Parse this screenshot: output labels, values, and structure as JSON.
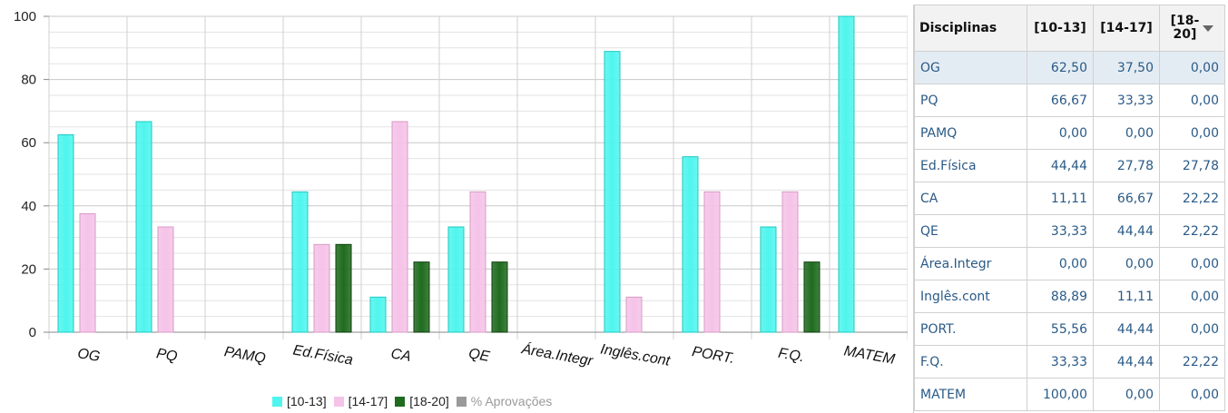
{
  "chart_data": {
    "type": "bar",
    "categories": [
      "OG",
      "PQ",
      "PAMQ",
      "Ed.Física",
      "CA",
      "QE",
      "Área.Integr",
      "Inglês.cont",
      "PORT.",
      "F.Q.",
      "MATEM"
    ],
    "series": [
      {
        "name": "[10-13]",
        "color": "#4ff5ee",
        "values": [
          62.5,
          66.67,
          0,
          44.44,
          11.11,
          33.33,
          0,
          88.89,
          55.56,
          33.33,
          100
        ]
      },
      {
        "name": "[14-17]",
        "color": "#f5c3e8",
        "values": [
          37.5,
          33.33,
          0,
          27.78,
          66.67,
          44.44,
          0,
          11.11,
          44.44,
          44.44,
          0
        ]
      },
      {
        "name": "[18-20]",
        "color": "#1f6b1f",
        "values": [
          0,
          0,
          0,
          27.78,
          22.22,
          22.22,
          0,
          0,
          0,
          22.22,
          0
        ]
      }
    ],
    "yticks": [
      "0",
      "20",
      "40",
      "60",
      "80",
      "100"
    ],
    "ylim": [
      0,
      100
    ],
    "grid": true,
    "legend_position": "bottom",
    "legend": [
      {
        "label": "[10-13]",
        "color": "#4ff5ee"
      },
      {
        "label": "[14-17]",
        "color": "#f5c3e8"
      },
      {
        "label": "[18-20]",
        "color": "#1f6b1f"
      },
      {
        "label": "% Aprovações",
        "color": "#9a9a9a"
      }
    ]
  },
  "table": {
    "headers": [
      "Disciplinas",
      "[10-13]",
      "[14-17]",
      "[18-20]"
    ],
    "header_last_line1": "[18-",
    "header_last_line2": "20]",
    "rows": [
      {
        "name": "OG",
        "v1": "62,50",
        "v2": "37,50",
        "v3": "0,00"
      },
      {
        "name": "PQ",
        "v1": "66,67",
        "v2": "33,33",
        "v3": "0,00"
      },
      {
        "name": "PAMQ",
        "v1": "0,00",
        "v2": "0,00",
        "v3": "0,00"
      },
      {
        "name": "Ed.Física",
        "v1": "44,44",
        "v2": "27,78",
        "v3": "27,78"
      },
      {
        "name": "CA",
        "v1": "11,11",
        "v2": "66,67",
        "v3": "22,22"
      },
      {
        "name": "QE",
        "v1": "33,33",
        "v2": "44,44",
        "v3": "22,22"
      },
      {
        "name": "Área.Integr",
        "v1": "0,00",
        "v2": "0,00",
        "v3": "0,00"
      },
      {
        "name": "Inglês.cont",
        "v1": "88,89",
        "v2": "11,11",
        "v3": "0,00"
      },
      {
        "name": "PORT.",
        "v1": "55,56",
        "v2": "44,44",
        "v3": "0,00"
      },
      {
        "name": "F.Q.",
        "v1": "33,33",
        "v2": "44,44",
        "v3": "22,22"
      },
      {
        "name": "MATEM",
        "v1": "100,00",
        "v2": "0,00",
        "v3": "0,00"
      }
    ]
  }
}
